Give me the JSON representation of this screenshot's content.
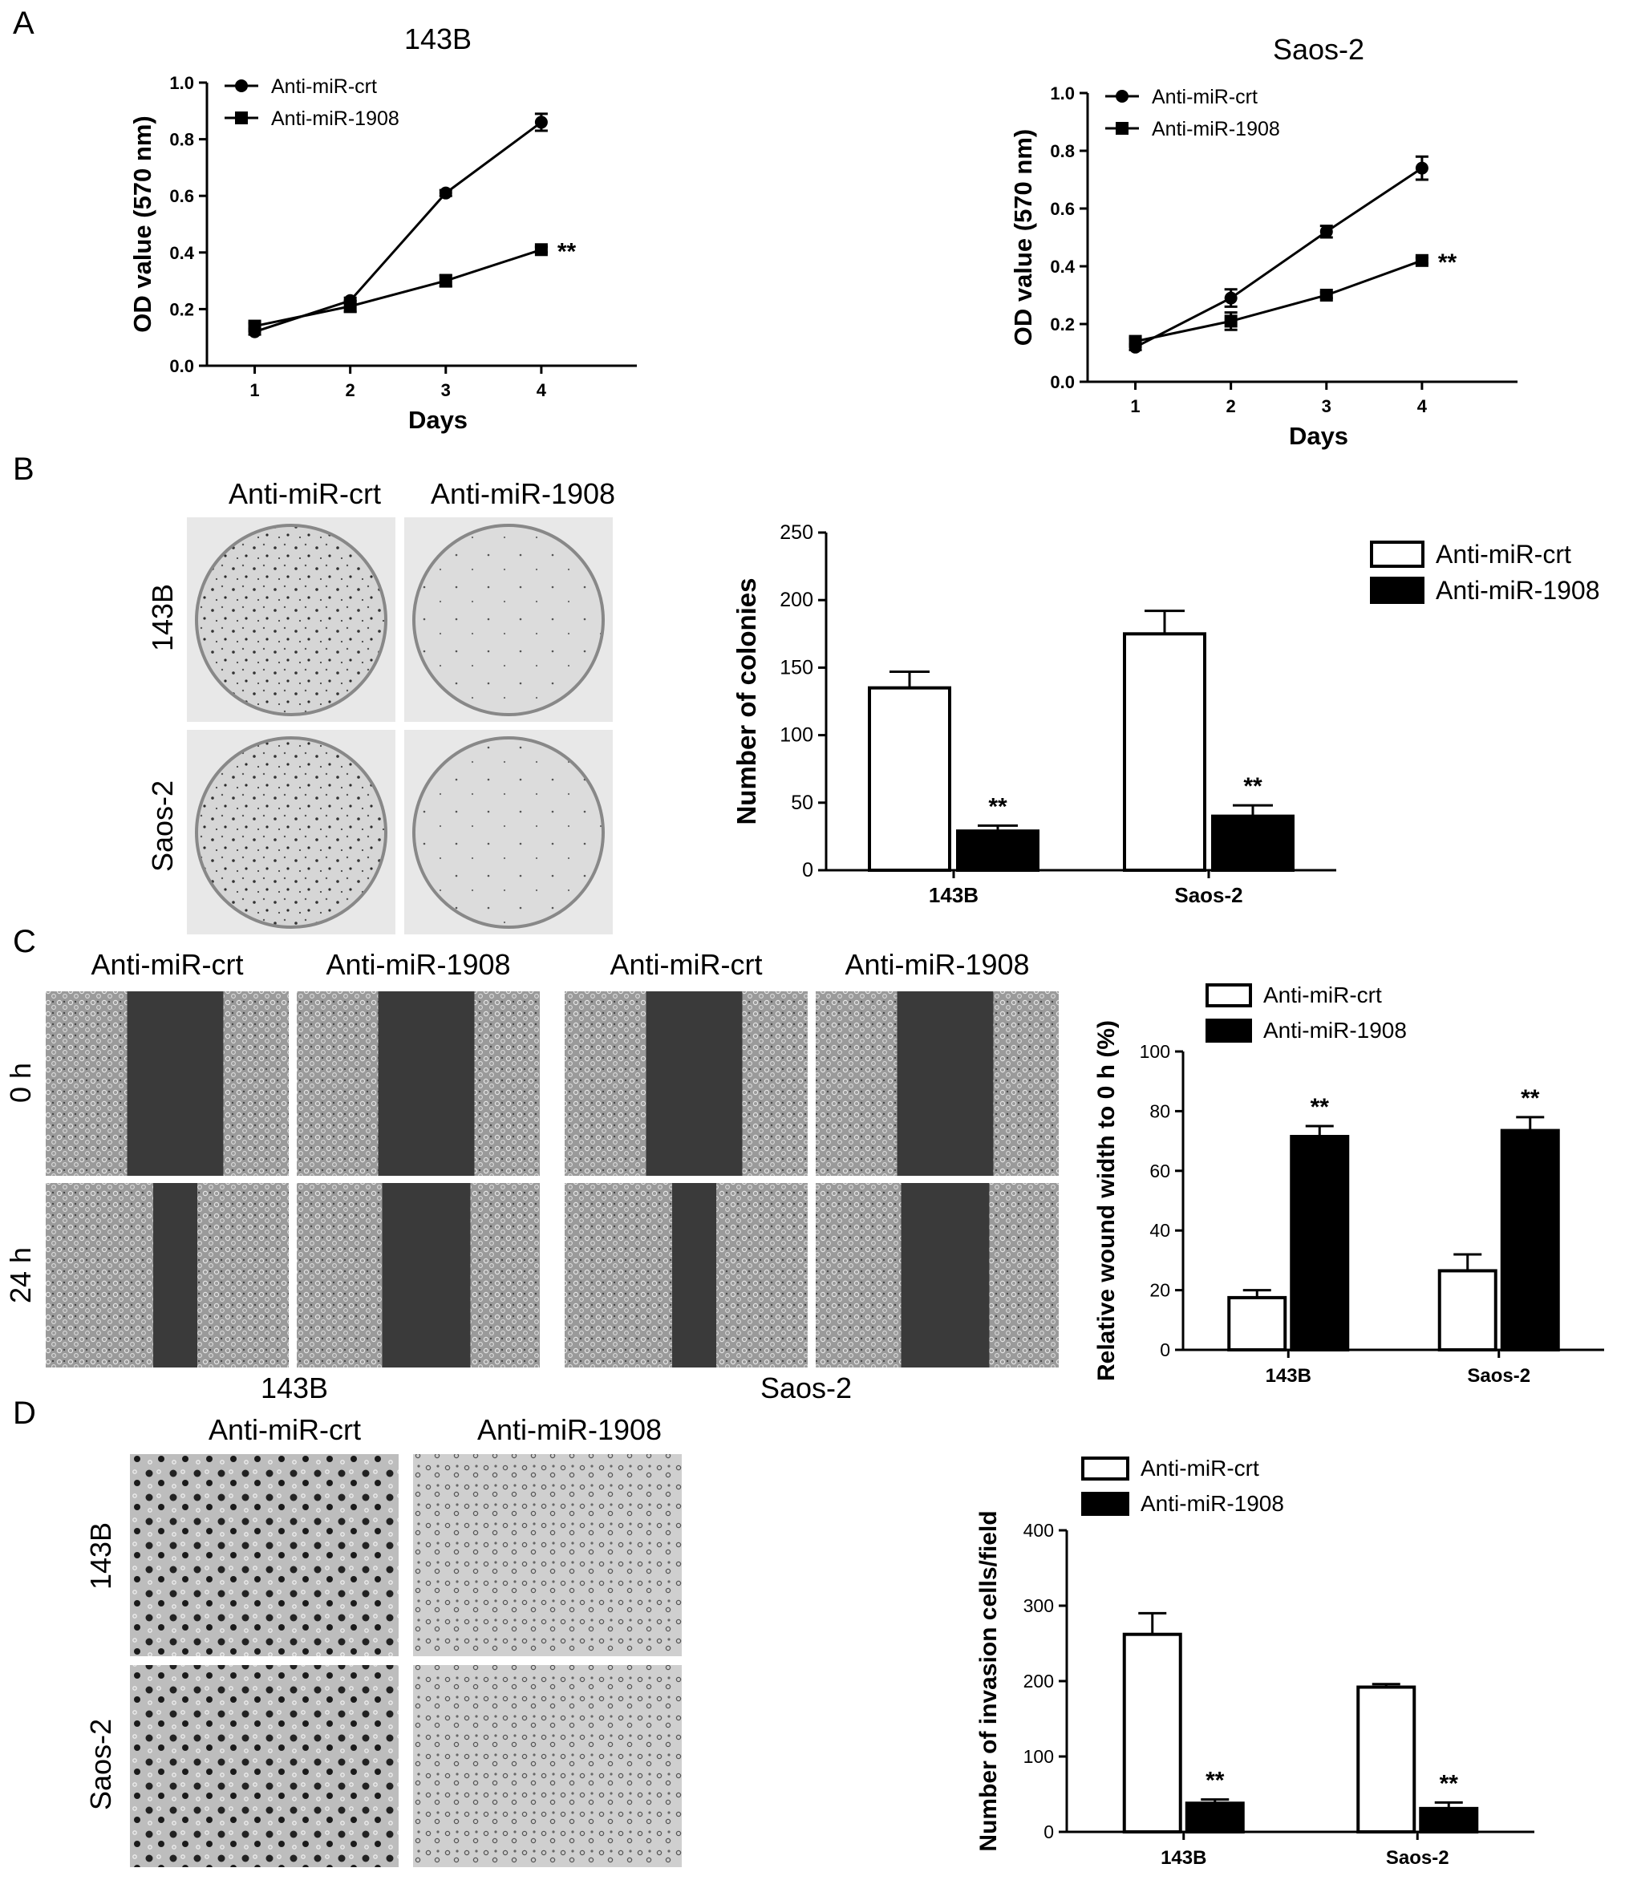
{
  "panels": {
    "A": {
      "letter": "A",
      "charts": [
        {
          "type": "line",
          "title": "143B",
          "xlabel": "Days",
          "ylabel": "OD value (570 nm)",
          "x": [
            1,
            2,
            3,
            4
          ],
          "xlim": [
            0.5,
            5
          ],
          "ylim": [
            0,
            1.0
          ],
          "yticks": [
            0.0,
            0.2,
            0.4,
            0.6,
            0.8,
            1.0
          ],
          "legend_placement": "top-left",
          "sig": "**",
          "series": [
            {
              "name": "Anti-miR-crt",
              "marker": "circle",
              "values": [
                0.12,
                0.23,
                0.61,
                0.86
              ],
              "err": [
                0.01,
                0.01,
                0.01,
                0.03
              ]
            },
            {
              "name": "Anti-miR-1908",
              "marker": "square",
              "values": [
                0.14,
                0.21,
                0.3,
                0.41
              ],
              "err": [
                0.01,
                0.02,
                0.02,
                0.01
              ]
            }
          ]
        },
        {
          "type": "line",
          "title": "Saos-2",
          "xlabel": "Days",
          "ylabel": "OD value (570 nm)",
          "x": [
            1,
            2,
            3,
            4
          ],
          "xlim": [
            0.5,
            5
          ],
          "ylim": [
            0,
            1.0
          ],
          "yticks": [
            0.0,
            0.2,
            0.4,
            0.6,
            0.8,
            1.0
          ],
          "legend_placement": "top-left",
          "sig": "**",
          "series": [
            {
              "name": "Anti-miR-crt",
              "marker": "circle",
              "values": [
                0.12,
                0.29,
                0.52,
                0.74
              ],
              "err": [
                0.01,
                0.03,
                0.02,
                0.04
              ]
            },
            {
              "name": "Anti-miR-1908",
              "marker": "square",
              "values": [
                0.14,
                0.21,
                0.3,
                0.42
              ],
              "err": [
                0.01,
                0.03,
                0.01,
                0.01
              ]
            }
          ]
        }
      ]
    },
    "B": {
      "letter": "B",
      "image_col_labels": [
        "Anti-miR-crt",
        "Anti-miR-1908"
      ],
      "image_row_labels": [
        "143B",
        "Saos-2"
      ],
      "chart": {
        "type": "bar",
        "categories": [
          "143B",
          "Saos-2"
        ],
        "ylabel": "Number of colonies",
        "ylim": [
          0,
          250
        ],
        "yticks": [
          0,
          50,
          100,
          150,
          200,
          250
        ],
        "legend_placement": "top-right",
        "sig": [
          "**",
          "**"
        ],
        "series": [
          {
            "name": "Anti-miR-crt",
            "fill": "#ffffff",
            "values": [
              135,
              175
            ],
            "err": [
              12,
              17
            ]
          },
          {
            "name": "Anti-miR-1908",
            "fill": "#000000",
            "values": [
              29,
              40
            ],
            "err": [
              4,
              8
            ]
          }
        ]
      }
    },
    "C": {
      "letter": "C",
      "image_col_labels": [
        "Anti-miR-crt",
        "Anti-miR-1908",
        "Anti-miR-crt",
        "Anti-miR-1908"
      ],
      "image_row_labels": [
        "0 h",
        "24 h"
      ],
      "image_group_labels": [
        "143B",
        "Saos-2"
      ],
      "chart": {
        "type": "bar",
        "categories": [
          "143B",
          "Saos-2"
        ],
        "ylabel": "Relative wound width to 0 h (%)",
        "ylim": [
          0,
          100
        ],
        "yticks": [
          0,
          20,
          40,
          60,
          80,
          100
        ],
        "legend_placement": "top-left",
        "sig": [
          "**",
          "**"
        ],
        "series": [
          {
            "name": "Anti-miR-crt",
            "fill": "#ffffff",
            "values": [
              17.5,
              26.5
            ],
            "err": [
              2.5,
              5.5
            ]
          },
          {
            "name": "Anti-miR-1908",
            "fill": "#000000",
            "values": [
              71.5,
              73.5
            ],
            "err": [
              3.5,
              4.5
            ]
          }
        ]
      }
    },
    "D": {
      "letter": "D",
      "image_col_labels": [
        "Anti-miR-crt",
        "Anti-miR-1908"
      ],
      "image_row_labels": [
        "143B",
        "Saos-2"
      ],
      "chart": {
        "type": "bar",
        "categories": [
          "143B",
          "Saos-2"
        ],
        "ylabel": "Number of invasion cells/field",
        "ylim": [
          0,
          400
        ],
        "yticks": [
          0,
          100,
          200,
          300,
          400
        ],
        "legend_placement": "top-left",
        "sig": [
          "**",
          "**"
        ],
        "series": [
          {
            "name": "Anti-miR-crt",
            "fill": "#ffffff",
            "values": [
              262,
              192
            ],
            "err": [
              28,
              4
            ]
          },
          {
            "name": "Anti-miR-1908",
            "fill": "#000000",
            "values": [
              38,
              31
            ],
            "err": [
              5,
              8
            ]
          }
        ]
      }
    }
  }
}
